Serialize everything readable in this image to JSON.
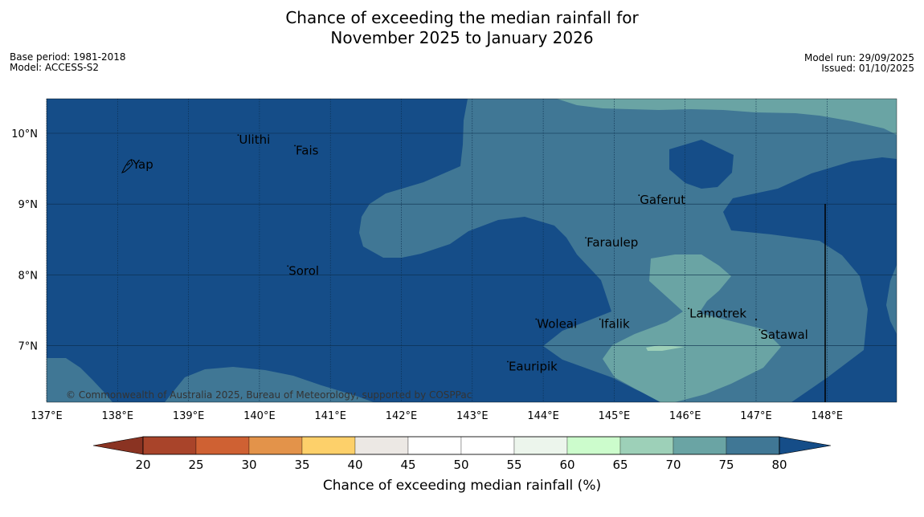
{
  "title": {
    "line1": "Chance of exceeding the median rainfall for",
    "line2": "November 2025 to January 2026"
  },
  "meta": {
    "base_period": "Base period: 1981-2018",
    "model": "Model: ACCESS-S2",
    "model_run": "Model run: 29/09/2025",
    "issued": "Issued: 01/10/2025"
  },
  "map": {
    "lon_range": [
      137,
      149
    ],
    "lat_range": [
      6.2,
      10.5
    ],
    "lon_ticks": [
      "137°E",
      "138°E",
      "139°E",
      "140°E",
      "141°E",
      "142°E",
      "143°E",
      "144°E",
      "145°E",
      "146°E",
      "147°E",
      "148°E"
    ],
    "lat_ticks": [
      "10°N",
      "9°N",
      "8°N",
      "7°N"
    ],
    "copyright": "© Commonwealth of Australia 2025, Bureau of Meteorology, supported by COSPPac",
    "places": [
      {
        "name": "Yap",
        "lon": 138.2,
        "lat": 9.5
      },
      {
        "name": "Ulithi",
        "lon": 139.7,
        "lat": 9.85
      },
      {
        "name": "Fais",
        "lon": 140.5,
        "lat": 9.7
      },
      {
        "name": "Sorol",
        "lon": 140.4,
        "lat": 8.0
      },
      {
        "name": "Gaferut",
        "lon": 145.35,
        "lat": 9.0
      },
      {
        "name": "Faraulep",
        "lon": 144.6,
        "lat": 8.4
      },
      {
        "name": "Woleai",
        "lon": 143.9,
        "lat": 7.25
      },
      {
        "name": "Ifalik",
        "lon": 144.8,
        "lat": 7.25
      },
      {
        "name": "Lamotrek",
        "lon": 146.05,
        "lat": 7.4
      },
      {
        "name": "Satawal",
        "lon": 147.05,
        "lat": 7.1
      },
      {
        "name": "Eauripik",
        "lon": 143.5,
        "lat": 6.65
      }
    ]
  },
  "legend": {
    "label": "Chance of exceeding median rainfall (%)",
    "ticks": [
      "20",
      "25",
      "30",
      "35",
      "40",
      "45",
      "50",
      "55",
      "60",
      "65",
      "70",
      "75",
      "80"
    ],
    "colors": [
      "#a9442a",
      "#cf6133",
      "#e3934a",
      "#fdd06a",
      "#ece8e4",
      "#ffffff",
      "#ffffff",
      "#ecf5ec",
      "#ccfccc",
      "#9dd0b8",
      "#6aa4a4",
      "#407795"
    ],
    "under_color": "#8a3322",
    "over_color": "#154d88"
  },
  "colors": {
    "band_75_80": "#407795",
    "band_70_75": "#6aa4a4",
    "band_65_70": "#9dd0b8",
    "above_80": "#154d88"
  }
}
